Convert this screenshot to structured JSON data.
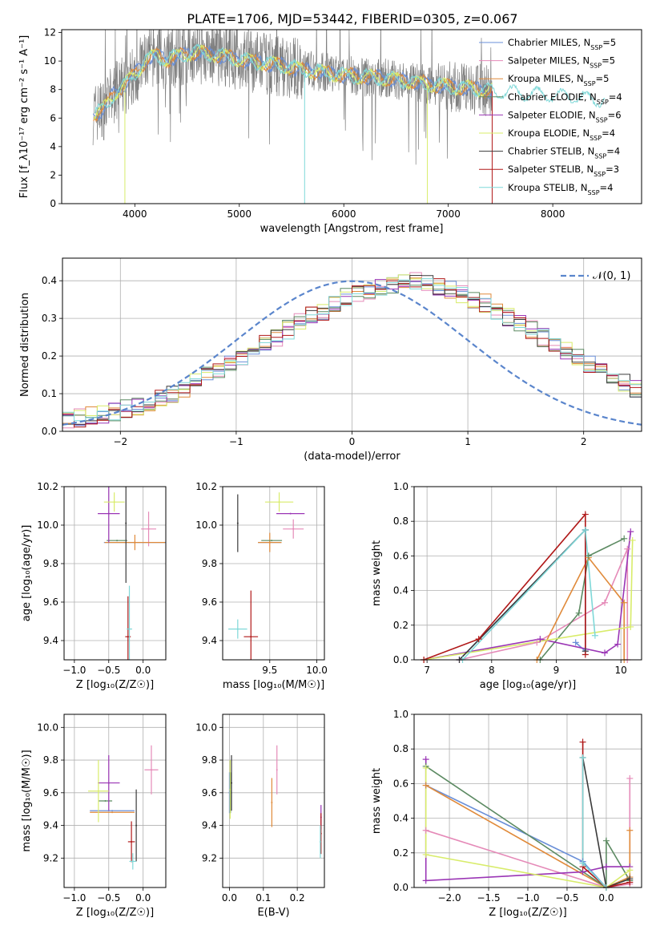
{
  "figure": {
    "title": "PLATE=1706, MJD=53442, FIBERID=0305, z=0.067"
  },
  "colors": {
    "chabrier_miles": "#6a8fd8",
    "salpeter_miles": "#e58ab8",
    "kroupa_miles": "#e08a3a",
    "chabrier_elodie": "#5c8a62",
    "salpeter_elodie": "#9a35b5",
    "kroupa_elodie": "#d8ec6a",
    "chabrier_stelib": "#3a3a3a",
    "salpeter_stelib": "#b01818",
    "kroupa_stelib": "#7fd8d8",
    "gaussian": "#5a85cc",
    "data_gray": "#808080"
  },
  "chart_data": [
    {
      "id": "spectrum",
      "type": "line",
      "xlabel": "wavelength [Angstrom, rest frame]",
      "ylabel": "Flux [f_λ10⁻¹⁷ erg cm⁻² s⁻¹ A⁻¹]",
      "xlim": [
        3300,
        8850
      ],
      "ylim": [
        0,
        12.2
      ],
      "xticks": [
        4000,
        5000,
        6000,
        7000,
        8000
      ],
      "yticks": [
        0,
        2,
        4,
        6,
        8,
        10,
        12
      ],
      "grid": false,
      "legend_position": "top-right",
      "continuum": {
        "x": [
          3600,
          3700,
          3800,
          3900,
          4000,
          4100,
          4200,
          4300,
          4400,
          4500,
          4600,
          4800,
          5000,
          5200,
          5400,
          5600,
          5800,
          6000,
          6200,
          6400,
          6600,
          6800,
          7000,
          7200,
          7400,
          7600,
          7800,
          8000,
          8200,
          8400,
          8600
        ],
        "y": [
          6.3,
          6.6,
          7.7,
          8.3,
          9.1,
          10.0,
          10.4,
          10.1,
          10.3,
          10.5,
          10.6,
          10.4,
          10.1,
          9.9,
          9.7,
          9.4,
          9.2,
          9.0,
          8.9,
          8.8,
          8.6,
          8.4,
          8.2,
          8.1,
          7.9,
          7.8,
          7.7,
          7.6,
          7.5,
          7.3,
          7.2
        ]
      },
      "series": [
        {
          "name": "Chabrier MILES, N_SSP=5",
          "color_key": "chabrier_miles"
        },
        {
          "name": "Salpeter MILES, N_SSP=5",
          "color_key": "salpeter_miles"
        },
        {
          "name": "Kroupa MILES, N_SSP=5",
          "color_key": "kroupa_miles"
        },
        {
          "name": "Chabrier ELODIE, N_SSP=4",
          "color_key": "chabrier_elodie"
        },
        {
          "name": "Salpeter ELODIE, N_SSP=6",
          "color_key": "salpeter_elodie"
        },
        {
          "name": "Kroupa ELODIE, N_SSP=4",
          "color_key": "kroupa_elodie"
        },
        {
          "name": "Chabrier STELIB, N_SSP=4",
          "color_key": "chabrier_stelib"
        },
        {
          "name": "Salpeter STELIB, N_SSP=3",
          "color_key": "salpeter_stelib"
        },
        {
          "name": "Kroupa STELIB, N_SSP=4",
          "color_key": "kroupa_stelib"
        }
      ]
    },
    {
      "id": "residuals",
      "type": "line",
      "xlabel": "(data-model)/error",
      "ylabel": "Normed distribution",
      "xlim": [
        -2.5,
        2.5
      ],
      "ylim": [
        0,
        0.46
      ],
      "xticks": [
        -2,
        -1,
        0,
        1,
        2
      ],
      "yticks": [
        0.0,
        0.1,
        0.2,
        0.3,
        0.4
      ],
      "grid": true,
      "legend_position": "top-right",
      "legend": "𝒩(0, 1)",
      "bin_width": 0.1,
      "bin_start": -2.5,
      "histogram": [
        0.03,
        0.035,
        0.04,
        0.045,
        0.05,
        0.06,
        0.065,
        0.075,
        0.085,
        0.1,
        0.115,
        0.13,
        0.15,
        0.165,
        0.18,
        0.2,
        0.215,
        0.235,
        0.25,
        0.27,
        0.29,
        0.31,
        0.32,
        0.34,
        0.355,
        0.365,
        0.37,
        0.38,
        0.39,
        0.395,
        0.4,
        0.395,
        0.385,
        0.375,
        0.365,
        0.35,
        0.34,
        0.32,
        0.305,
        0.285,
        0.27,
        0.25,
        0.23,
        0.215,
        0.2,
        0.18,
        0.16,
        0.145,
        0.13,
        0.115,
        0.1,
        0.09,
        0.08,
        0.07,
        0.06,
        0.055,
        0.05,
        0.045,
        0.04,
        0.035
      ]
    },
    {
      "id": "age_vs_z",
      "type": "scatter",
      "xlabel": "Z [log₁₀(Z/Z☉)]",
      "ylabel": "age  [log₁₀(age/yr)]",
      "xlim": [
        -1.15,
        0.33
      ],
      "ylim": [
        9.3,
        10.2
      ],
      "xticks": [
        -1.0,
        -0.5,
        0.0
      ],
      "yticks": [
        9.4,
        9.6,
        9.8,
        10.0,
        10.2
      ],
      "grid": true,
      "points": [
        {
          "k": "chabrier_miles",
          "x": -0.12,
          "y": 9.91,
          "ex": 0.9,
          "ey": 0.0
        },
        {
          "k": "salpeter_miles",
          "x": 0.08,
          "y": 9.98,
          "ex": 0.22,
          "ey": 0.18
        },
        {
          "k": "kroupa_miles",
          "x": -0.12,
          "y": 9.91,
          "ex": 0.88,
          "ey": 0.08
        },
        {
          "k": "chabrier_elodie",
          "x": -0.38,
          "y": 9.92,
          "ex": 0.3,
          "ey": 0.0
        },
        {
          "k": "salpeter_elodie",
          "x": -0.5,
          "y": 10.06,
          "ex": 0.32,
          "ey": 0.3
        },
        {
          "k": "kroupa_elodie",
          "x": -0.42,
          "y": 10.12,
          "ex": 0.3,
          "ey": 0.1
        },
        {
          "k": "chabrier_stelib",
          "x": -0.25,
          "y": 10.01,
          "ex": 0.0,
          "ey": 0.62
        },
        {
          "k": "salpeter_stelib",
          "x": -0.22,
          "y": 9.42,
          "ex": 0.08,
          "ey": 0.42
        },
        {
          "k": "kroupa_stelib",
          "x": -0.2,
          "y": 9.46,
          "ex": 0.08,
          "ey": 0.45
        }
      ]
    },
    {
      "id": "age_vs_mass",
      "type": "scatter",
      "xlabel": "mass [log₁₀(M/M☉)]",
      "ylabel": "",
      "xlim": [
        9.0,
        10.08
      ],
      "ylim": [
        9.3,
        10.2
      ],
      "xticks": [
        9.5,
        10.0
      ],
      "yticks": [
        9.4,
        9.6,
        9.8,
        10.0,
        10.2
      ],
      "grid": true,
      "points": [
        {
          "k": "chabrier_miles",
          "x": 9.5,
          "y": 9.91,
          "ex": 0.25,
          "ey": 0.0
        },
        {
          "k": "salpeter_miles",
          "x": 9.75,
          "y": 9.98,
          "ex": 0.22,
          "ey": 0.1
        },
        {
          "k": "kroupa_miles",
          "x": 9.5,
          "y": 9.91,
          "ex": 0.25,
          "ey": 0.1
        },
        {
          "k": "chabrier_elodie",
          "x": 9.52,
          "y": 9.92,
          "ex": 0.22,
          "ey": 0.0
        },
        {
          "k": "salpeter_elodie",
          "x": 9.72,
          "y": 10.06,
          "ex": 0.3,
          "ey": 0.0
        },
        {
          "k": "kroupa_elodie",
          "x": 9.6,
          "y": 10.12,
          "ex": 0.3,
          "ey": 0.1
        },
        {
          "k": "chabrier_stelib",
          "x": 9.16,
          "y": 10.01,
          "ex": 0.0,
          "ey": 0.3
        },
        {
          "k": "salpeter_stelib",
          "x": 9.3,
          "y": 9.42,
          "ex": 0.15,
          "ey": 0.48
        },
        {
          "k": "kroupa_stelib",
          "x": 9.16,
          "y": 9.46,
          "ex": 0.2,
          "ey": 0.1
        }
      ]
    },
    {
      "id": "weight_vs_age",
      "type": "line",
      "xlabel": "age  [log₁₀(age/yr)]",
      "ylabel": "mass weight",
      "xlim": [
        6.8,
        10.32
      ],
      "ylim": [
        0.0,
        1.0
      ],
      "xticks": [
        7,
        8,
        9,
        10
      ],
      "yticks": [
        0.0,
        0.2,
        0.4,
        0.6,
        0.8,
        1.0
      ],
      "grid": true,
      "series": [
        {
          "k": "chabrier_miles",
          "x": [
            7.5,
            9.45,
            9.45,
            9.3
          ],
          "y": [
            0.0,
            0.75,
            0.05,
            0.1
          ]
        },
        {
          "k": "salpeter_miles",
          "x": [
            7.5,
            8.7,
            9.75,
            10.1,
            10.1
          ],
          "y": [
            0.0,
            0.1,
            0.33,
            0.64,
            0.0
          ]
        },
        {
          "k": "kroupa_miles",
          "x": [
            8.7,
            9.5,
            10.05,
            10.05
          ],
          "y": [
            0.0,
            0.59,
            0.33,
            0.0
          ]
        },
        {
          "k": "chabrier_elodie",
          "x": [
            8.75,
            9.35,
            9.5,
            10.05
          ],
          "y": [
            0.0,
            0.27,
            0.6,
            0.7
          ]
        },
        {
          "k": "salpeter_elodie",
          "x": [
            6.95,
            8.75,
            9.75,
            9.95,
            10.15
          ],
          "y": [
            0.0,
            0.12,
            0.04,
            0.09,
            0.74
          ]
        },
        {
          "k": "kroupa_elodie",
          "x": [
            6.95,
            10.15,
            10.18
          ],
          "y": [
            0.0,
            0.19,
            0.69
          ]
        },
        {
          "k": "chabrier_stelib",
          "x": [
            7.5,
            9.45,
            9.45
          ],
          "y": [
            0.0,
            0.75,
            0.05
          ]
        },
        {
          "k": "salpeter_stelib",
          "x": [
            6.95,
            7.8,
            9.45,
            9.45
          ],
          "y": [
            0.0,
            0.12,
            0.84,
            0.03
          ]
        },
        {
          "k": "kroupa_stelib",
          "x": [
            7.55,
            9.45,
            9.6
          ],
          "y": [
            0.0,
            0.75,
            0.14
          ]
        }
      ]
    },
    {
      "id": "mass_vs_z",
      "type": "scatter",
      "xlabel": "Z [log₁₀(Z/Z☉)]",
      "ylabel": "mass [log₁₀(M/M☉)]",
      "xlim": [
        -1.15,
        0.33
      ],
      "ylim": [
        9.02,
        10.08
      ],
      "xticks": [
        -1.0,
        -0.5,
        0.0
      ],
      "yticks": [
        9.2,
        9.4,
        9.6,
        9.8,
        10.0
      ],
      "grid": true,
      "points": [
        {
          "k": "chabrier_miles",
          "x": -0.45,
          "y": 9.49,
          "ex": 0.65,
          "ey": 0.0
        },
        {
          "k": "salpeter_miles",
          "x": 0.12,
          "y": 9.74,
          "ex": 0.2,
          "ey": 0.3
        },
        {
          "k": "kroupa_miles",
          "x": -0.45,
          "y": 9.48,
          "ex": 0.65,
          "ey": 0.0
        },
        {
          "k": "chabrier_elodie",
          "x": -0.55,
          "y": 9.55,
          "ex": 0.2,
          "ey": 0.0
        },
        {
          "k": "salpeter_elodie",
          "x": -0.5,
          "y": 9.66,
          "ex": 0.32,
          "ey": 0.34
        },
        {
          "k": "kroupa_elodie",
          "x": -0.65,
          "y": 9.61,
          "ex": 0.3,
          "ey": 0.38
        },
        {
          "k": "chabrier_stelib",
          "x": -0.1,
          "y": 9.4,
          "ex": 0.0,
          "ey": 0.44
        },
        {
          "k": "salpeter_stelib",
          "x": -0.17,
          "y": 9.3,
          "ex": 0.1,
          "ey": 0.25
        },
        {
          "k": "kroupa_stelib",
          "x": -0.15,
          "y": 9.18,
          "ex": 0.1,
          "ey": 0.1
        }
      ]
    },
    {
      "id": "mass_vs_ebv",
      "type": "scatter",
      "xlabel": "E(B-V)",
      "ylabel": "",
      "xlim": [
        -0.02,
        0.28
      ],
      "ylim": [
        9.02,
        10.08
      ],
      "xticks": [
        0.0,
        0.1,
        0.2
      ],
      "yticks": [
        9.2,
        9.4,
        9.6,
        9.8,
        10.0
      ],
      "grid": true,
      "points": [
        {
          "k": "chabrier_miles",
          "x": 0.0,
          "y": 9.6,
          "ex": 0.0,
          "ey": 0.25
        },
        {
          "k": "salpeter_miles",
          "x": 0.14,
          "y": 9.74,
          "ex": 0.0,
          "ey": 0.3
        },
        {
          "k": "kroupa_miles",
          "x": 0.125,
          "y": 9.54,
          "ex": 0.0,
          "ey": 0.3
        },
        {
          "k": "chabrier_elodie",
          "x": 0.003,
          "y": 9.6,
          "ex": 0.0,
          "ey": 0.25
        },
        {
          "k": "salpeter_elodie",
          "x": 0.27,
          "y": 9.45,
          "ex": 0.0,
          "ey": 0.15
        },
        {
          "k": "kroupa_elodie",
          "x": 0.002,
          "y": 9.62,
          "ex": 0.0,
          "ey": 0.36
        },
        {
          "k": "chabrier_stelib",
          "x": 0.006,
          "y": 9.66,
          "ex": 0.0,
          "ey": 0.34
        },
        {
          "k": "salpeter_stelib",
          "x": 0.27,
          "y": 9.35,
          "ex": 0.0,
          "ey": 0.25
        },
        {
          "k": "kroupa_stelib",
          "x": 0.268,
          "y": 9.3,
          "ex": 0.0,
          "ey": 0.2
        }
      ]
    },
    {
      "id": "weight_vs_z",
      "type": "line",
      "xlabel": "Z [log₁₀(Z/Z☉)]",
      "ylabel": "mass weight",
      "xlim": [
        -2.45,
        0.45
      ],
      "ylim": [
        0.0,
        1.0
      ],
      "xticks": [
        -2.0,
        -1.5,
        -1.0,
        -0.5,
        0.0
      ],
      "yticks": [
        0.0,
        0.2,
        0.4,
        0.6,
        0.8,
        1.0
      ],
      "grid": true,
      "series": [
        {
          "k": "chabrier_miles",
          "x": [
            -2.3,
            -0.3,
            0.0,
            0.3
          ],
          "y": [
            0.59,
            0.15,
            0.0,
            0.06
          ]
        },
        {
          "k": "salpeter_miles",
          "x": [
            -2.3,
            0.0,
            0.3,
            0.3
          ],
          "y": [
            0.33,
            0.0,
            0.02,
            0.63
          ]
        },
        {
          "k": "kroupa_miles",
          "x": [
            -2.3,
            0.0,
            0.3,
            0.3
          ],
          "y": [
            0.59,
            0.0,
            0.06,
            0.33
          ]
        },
        {
          "k": "chabrier_elodie",
          "x": [
            -2.3,
            0.0,
            0.0,
            0.3
          ],
          "y": [
            0.7,
            0.0,
            0.27,
            0.04
          ]
        },
        {
          "k": "salpeter_elodie",
          "x": [
            -2.3,
            -2.3,
            -0.3,
            0.0,
            0.3
          ],
          "y": [
            0.74,
            0.04,
            0.09,
            0.12,
            0.12
          ]
        },
        {
          "k": "kroupa_elodie",
          "x": [
            -2.3,
            -2.3,
            0.0,
            0.3
          ],
          "y": [
            0.69,
            0.19,
            0.0,
            0.1
          ]
        },
        {
          "k": "chabrier_stelib",
          "x": [
            -0.3,
            0.0,
            0.3
          ],
          "y": [
            0.75,
            0.0,
            0.05
          ]
        },
        {
          "k": "salpeter_stelib",
          "x": [
            -0.3,
            -0.3,
            0.0,
            0.3
          ],
          "y": [
            0.84,
            0.12,
            0.0,
            0.03
          ]
        },
        {
          "k": "kroupa_stelib",
          "x": [
            -0.3,
            -0.3,
            0.0
          ],
          "y": [
            0.75,
            0.14,
            0.0
          ]
        }
      ]
    }
  ]
}
